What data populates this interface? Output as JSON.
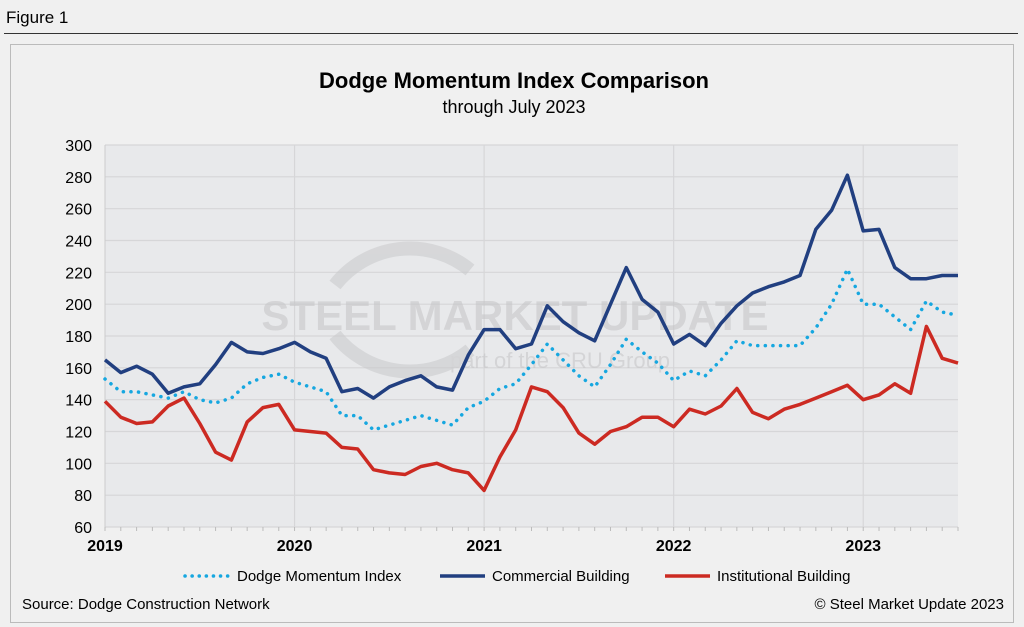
{
  "figure_label": "Figure 1",
  "source": "Source: Dodge Construction Network",
  "copyright": "© Steel Market Update 2023",
  "watermark": {
    "main": "STEEL MARKET UPDATE",
    "sub": "part of the CRU Group"
  },
  "colors": {
    "dmi": "#16a7e0",
    "commercial": "#213f80",
    "institutional": "#cc2a22",
    "plot_bg": "#e8e9eb"
  },
  "chart_data": {
    "type": "line",
    "title": "Dodge Momentum Index Comparison",
    "subtitle": "through July 2023",
    "xlabel": "",
    "ylabel": "",
    "ylim": [
      60,
      300
    ],
    "yticks": [
      "60",
      "80",
      "100",
      "120",
      "140",
      "160",
      "180",
      "200",
      "220",
      "240",
      "260",
      "280",
      "300"
    ],
    "xticks": [
      "2019",
      "2020",
      "2021",
      "2022",
      "2023"
    ],
    "x_start": "2019-01",
    "x_end": "2023-07",
    "grid": true,
    "legend_position": "bottom",
    "series": [
      {
        "name": "Dodge Momentum Index",
        "style": "dotted",
        "values": [
          153,
          145,
          145,
          143,
          141,
          145,
          140,
          138,
          141,
          150,
          154,
          156,
          151,
          148,
          145,
          130,
          130,
          121,
          124,
          127,
          130,
          127,
          124,
          135,
          139,
          147,
          150,
          162,
          175,
          165,
          155,
          148,
          162,
          178,
          170,
          163,
          152,
          158,
          155,
          165,
          177,
          174,
          174,
          174,
          174,
          185,
          200,
          222,
          200,
          200,
          192,
          184,
          202,
          195,
          193
        ]
      },
      {
        "name": "Commercial Building",
        "style": "solid",
        "values": [
          165,
          157,
          161,
          156,
          144,
          148,
          150,
          162,
          176,
          170,
          169,
          172,
          176,
          170,
          166,
          145,
          147,
          141,
          148,
          152,
          155,
          148,
          146,
          168,
          184,
          184,
          172,
          175,
          199,
          189,
          182,
          177,
          200,
          223,
          203,
          195,
          175,
          181,
          174,
          188,
          199,
          207,
          211,
          214,
          218,
          247,
          259,
          281,
          246,
          247,
          223,
          216,
          216,
          218,
          218
        ]
      },
      {
        "name": "Institutional Building",
        "style": "solid",
        "values": [
          139,
          129,
          125,
          126,
          136,
          141,
          125,
          107,
          102,
          126,
          135,
          137,
          121,
          120,
          119,
          110,
          109,
          96,
          94,
          93,
          98,
          100,
          96,
          94,
          83,
          104,
          121,
          148,
          145,
          135,
          119,
          112,
          120,
          123,
          129,
          129,
          123,
          134,
          131,
          136,
          147,
          132,
          128,
          134,
          137,
          141,
          145,
          149,
          140,
          143,
          150,
          144,
          186,
          166,
          163
        ]
      }
    ]
  }
}
